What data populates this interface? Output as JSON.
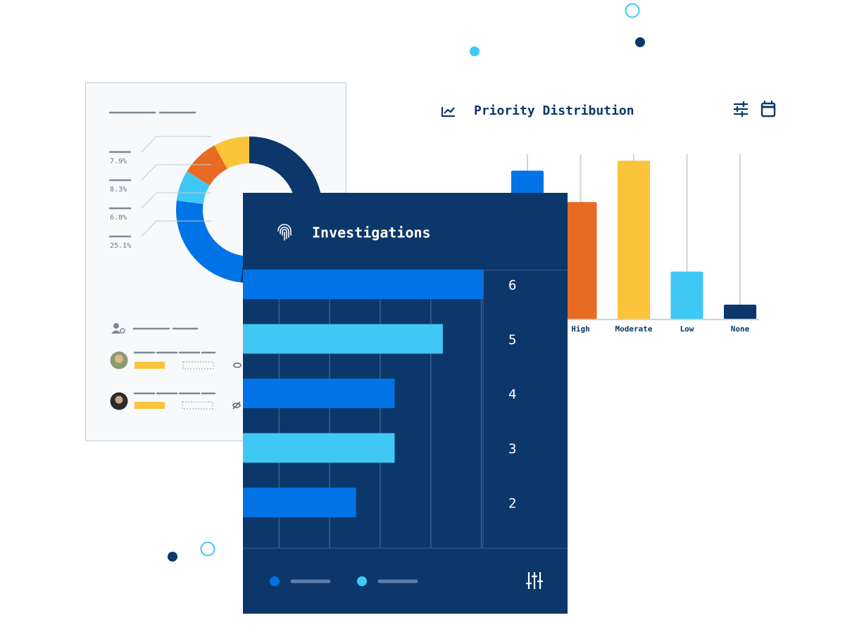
{
  "chart_data": [
    {
      "type": "pie",
      "donut": true,
      "values": [
        51.9,
        25.1,
        6.8,
        8.3,
        7.9
      ],
      "value_labels": [
        null,
        "25.1%",
        "6.8%",
        "8.3%",
        "7.9%"
      ],
      "colors": [
        "#0b376b",
        "#0073e6",
        "#40c8f5",
        "#e86a23",
        "#fbc43a"
      ]
    },
    {
      "type": "bar",
      "title": "Priority Distribution",
      "categories": [
        null,
        "High",
        "Moderate",
        "Low",
        "None"
      ],
      "values": [
        90,
        71,
        96,
        29,
        9
      ],
      "colors": [
        "#0073e6",
        "#e86a23",
        "#fbc43a",
        "#40c8f5",
        "#0b376b"
      ],
      "ylim": [
        0,
        100
      ],
      "grid": true
    },
    {
      "type": "barh",
      "title": "Investigations",
      "categories": [
        "6",
        "5",
        "4",
        "3",
        "2"
      ],
      "values": [
        100,
        83,
        63,
        63,
        47
      ],
      "colors": [
        "#0073e6",
        "#40c8f5",
        "#0073e6",
        "#40c8f5",
        "#0073e6"
      ],
      "xlim": [
        0,
        100
      ],
      "xticks": [
        15,
        36,
        57,
        78,
        99
      ],
      "grid": true
    }
  ]
}
